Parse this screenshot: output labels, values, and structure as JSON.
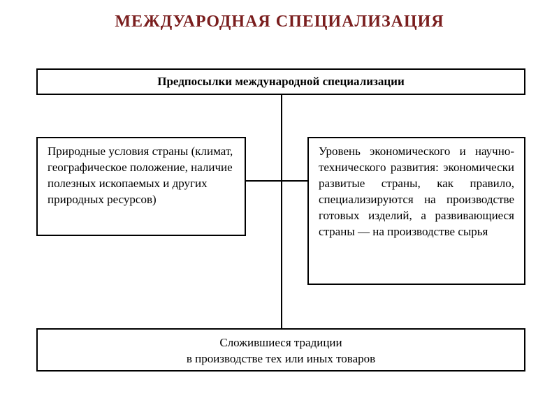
{
  "title": "МЕЖДУАРОДНАЯ СПЕЦИАЛИЗАЦИЯ",
  "title_color": "#7a1e1e",
  "diagram": {
    "type": "flowchart",
    "background_color": "#ffffff",
    "border_color": "#000000",
    "line_color": "#000000",
    "text_color": "#000000",
    "font_family": "Times New Roman",
    "nodes": {
      "top": {
        "label": "Предпосылки международной специализации",
        "fontsize": 17,
        "weight": "bold"
      },
      "left": {
        "label": "Природные условия страны (климат, географическое положение, наличие полезных ископаемых и других природных ресурсов)",
        "fontsize": 17
      },
      "right": {
        "label": "Уровень экономического и научно-технического развития: экономически развитые страны, как правило, специализируются на производстве готовых изделий, а развивающиеся страны — на производстве сырья",
        "fontsize": 17
      },
      "bottom": {
        "line1": "Сложившиеся традиции",
        "line2": "в производстве тех или иных товаров",
        "fontsize": 17
      }
    },
    "edges": [
      {
        "from": "top",
        "to": "left"
      },
      {
        "from": "top",
        "to": "right"
      },
      {
        "from": "top",
        "to": "bottom"
      }
    ]
  }
}
